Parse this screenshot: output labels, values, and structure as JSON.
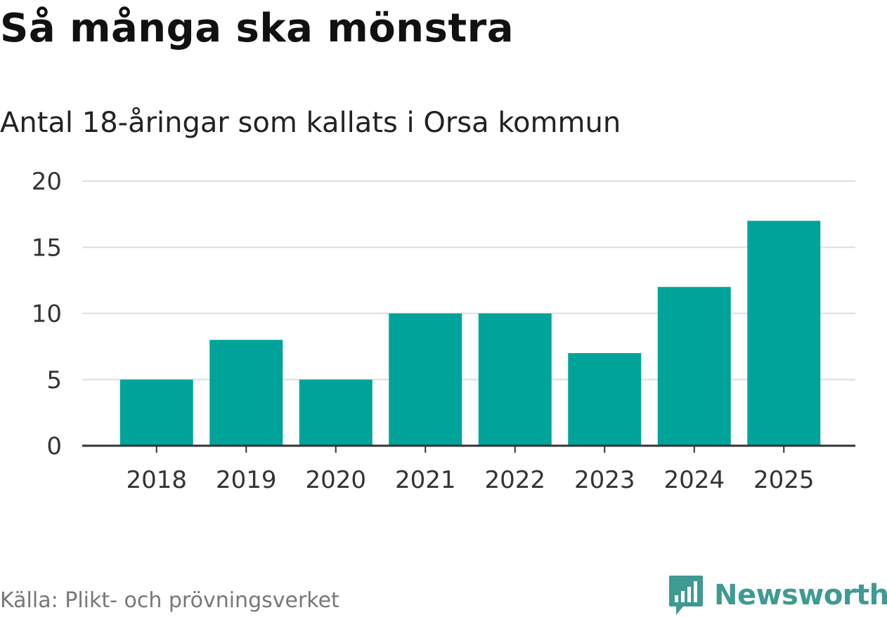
{
  "header": {
    "title": "Så många ska mönstra",
    "subtitle": "Antal 18-åringar som kallats i Orsa kommun"
  },
  "footer": {
    "source": "Källa: Plikt- och prövningsverket",
    "brand": "Newsworthy",
    "brand_icon": "chart-bubble-icon"
  },
  "colors": {
    "bar": "#00a39a",
    "grid": "#dddddd",
    "axis": "#333333",
    "brand": "#3e9a93"
  },
  "chart_data": {
    "type": "bar",
    "title": "Så många ska mönstra",
    "subtitle": "Antal 18-åringar som kallats i Orsa kommun",
    "categories": [
      "2018",
      "2019",
      "2020",
      "2021",
      "2022",
      "2023",
      "2024",
      "2025"
    ],
    "values": [
      5,
      8,
      5,
      10,
      10,
      7,
      12,
      17
    ],
    "xlabel": "",
    "ylabel": "",
    "ylim": [
      0,
      20
    ],
    "yticks": [
      0,
      5,
      10,
      15,
      20
    ],
    "grid": true,
    "legend": "none"
  }
}
